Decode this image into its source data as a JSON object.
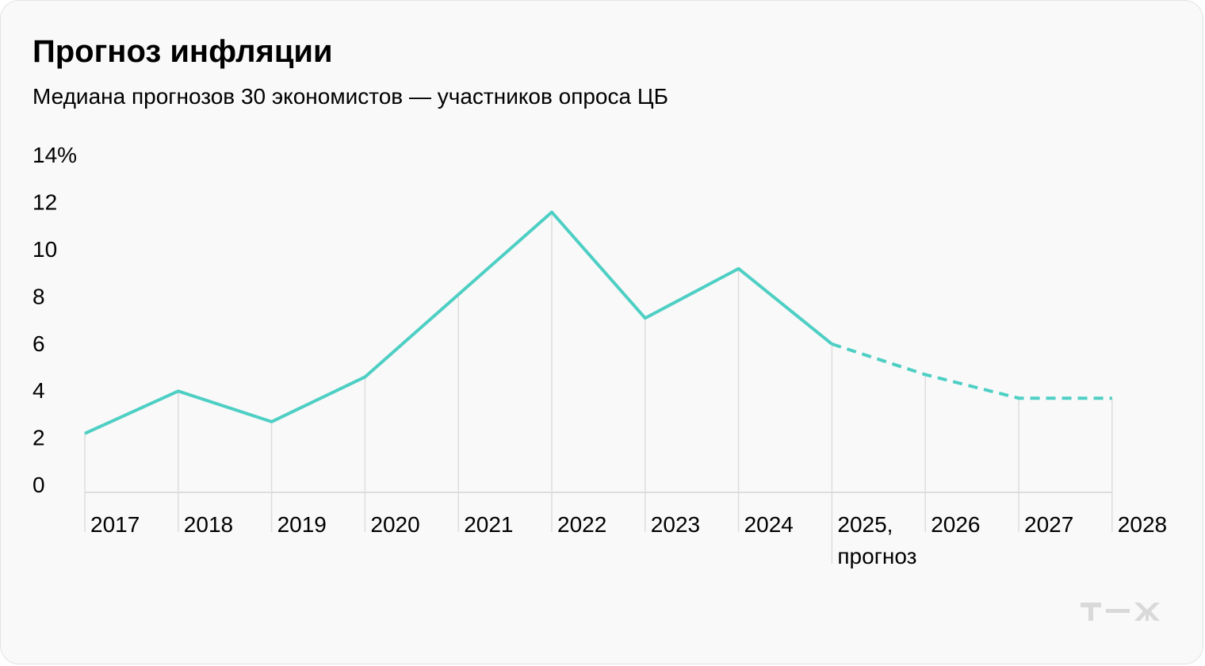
{
  "title": "Прогноз инфляции",
  "subtitle": "Медиана прогнозов 30 экономистов — участников опроса ЦБ",
  "logo_text": "Т—Ж",
  "chart_data": {
    "type": "line",
    "title": "Прогноз инфляции",
    "subtitle": "Медиана прогнозов 30 экономистов — участников опроса ЦБ",
    "categories": [
      "2017",
      "2018",
      "2019",
      "2020",
      "2021",
      "2022",
      "2023",
      "2024",
      "2025, прогноз",
      "2026",
      "2027",
      "2028"
    ],
    "category_labels": [
      [
        "2017"
      ],
      [
        "2018"
      ],
      [
        "2019"
      ],
      [
        "2020"
      ],
      [
        "2021"
      ],
      [
        "2022"
      ],
      [
        "2023"
      ],
      [
        "2024"
      ],
      [
        "2025,",
        "прогноз"
      ],
      [
        "2026"
      ],
      [
        "2027"
      ],
      [
        "2028"
      ]
    ],
    "values": [
      2.5,
      4.3,
      3.0,
      4.9,
      8.4,
      11.9,
      7.4,
      9.5,
      6.3,
      5.0,
      4.0,
      4.0
    ],
    "actual_until_index": 8,
    "forecast_style": "dashed",
    "ylim": [
      0,
      14
    ],
    "yticks": [
      0,
      2,
      4,
      6,
      8,
      10,
      12,
      14
    ],
    "ytick_labels": [
      "0",
      "2",
      "4",
      "6",
      "8",
      "10",
      "12",
      "14%"
    ],
    "grid": "vertical lines at each year",
    "line_color": "#4ecfc4",
    "grid_color": "#dddddd"
  }
}
